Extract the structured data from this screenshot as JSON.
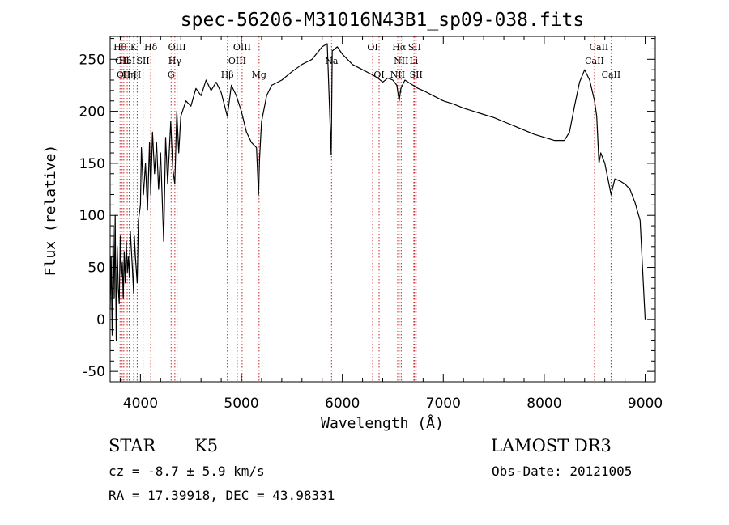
{
  "chart_data": {
    "type": "line",
    "title": "spec-56206-M31016N43B1_sp09-038.fits",
    "xlabel": "Wavelength (Å)",
    "ylabel": "Flux (relative)",
    "xlim": [
      3700,
      9100
    ],
    "ylim": [
      -60,
      272
    ],
    "xticks": [
      4000,
      5000,
      6000,
      7000,
      8000,
      9000
    ],
    "yticks": [
      -50,
      0,
      50,
      100,
      150,
      200,
      250
    ],
    "series": [
      {
        "name": "flux",
        "points": [
          [
            3700,
            10
          ],
          [
            3710,
            60
          ],
          [
            3720,
            -15
          ],
          [
            3730,
            90
          ],
          [
            3740,
            20
          ],
          [
            3750,
            100
          ],
          [
            3760,
            -20
          ],
          [
            3770,
            70
          ],
          [
            3780,
            30
          ],
          [
            3790,
            15
          ],
          [
            3800,
            80
          ],
          [
            3810,
            40
          ],
          [
            3820,
            55
          ],
          [
            3830,
            20
          ],
          [
            3840,
            65
          ],
          [
            3850,
            35
          ],
          [
            3860,
            75
          ],
          [
            3870,
            45
          ],
          [
            3880,
            60
          ],
          [
            3890,
            40
          ],
          [
            3900,
            85
          ],
          [
            3920,
            50
          ],
          [
            3933,
            25
          ],
          [
            3940,
            80
          ],
          [
            3950,
            60
          ],
          [
            3968,
            35
          ],
          [
            3980,
            95
          ],
          [
            4000,
            110
          ],
          [
            4010,
            165
          ],
          [
            4030,
            120
          ],
          [
            4050,
            150
          ],
          [
            4070,
            105
          ],
          [
            4090,
            170
          ],
          [
            4102,
            120
          ],
          [
            4120,
            180
          ],
          [
            4140,
            140
          ],
          [
            4160,
            170
          ],
          [
            4180,
            125
          ],
          [
            4200,
            160
          ],
          [
            4230,
            75
          ],
          [
            4250,
            175
          ],
          [
            4270,
            130
          ],
          [
            4300,
            190
          ],
          [
            4320,
            145
          ],
          [
            4340,
            130
          ],
          [
            4360,
            200
          ],
          [
            4380,
            160
          ],
          [
            4400,
            195
          ],
          [
            4450,
            210
          ],
          [
            4500,
            205
          ],
          [
            4550,
            222
          ],
          [
            4600,
            215
          ],
          [
            4650,
            230
          ],
          [
            4700,
            220
          ],
          [
            4750,
            228
          ],
          [
            4800,
            218
          ],
          [
            4861,
            195
          ],
          [
            4900,
            225
          ],
          [
            4950,
            215
          ],
          [
            5000,
            200
          ],
          [
            5050,
            180
          ],
          [
            5100,
            170
          ],
          [
            5150,
            165
          ],
          [
            5170,
            120
          ],
          [
            5180,
            155
          ],
          [
            5200,
            190
          ],
          [
            5250,
            215
          ],
          [
            5300,
            225
          ],
          [
            5400,
            230
          ],
          [
            5500,
            238
          ],
          [
            5600,
            245
          ],
          [
            5700,
            250
          ],
          [
            5800,
            262
          ],
          [
            5850,
            265
          ],
          [
            5890,
            158
          ],
          [
            5900,
            258
          ],
          [
            5950,
            262
          ],
          [
            6000,
            255
          ],
          [
            6050,
            250
          ],
          [
            6100,
            245
          ],
          [
            6200,
            240
          ],
          [
            6300,
            235
          ],
          [
            6350,
            232
          ],
          [
            6400,
            228
          ],
          [
            6450,
            232
          ],
          [
            6500,
            230
          ],
          [
            6540,
            225
          ],
          [
            6563,
            210
          ],
          [
            6580,
            222
          ],
          [
            6620,
            230
          ],
          [
            6700,
            225
          ],
          [
            6750,
            222
          ],
          [
            6800,
            220
          ],
          [
            6900,
            215
          ],
          [
            7000,
            210
          ],
          [
            7100,
            207
          ],
          [
            7200,
            203
          ],
          [
            7300,
            200
          ],
          [
            7400,
            197
          ],
          [
            7500,
            194
          ],
          [
            7600,
            190
          ],
          [
            7700,
            186
          ],
          [
            7800,
            182
          ],
          [
            7900,
            178
          ],
          [
            8000,
            175
          ],
          [
            8100,
            172
          ],
          [
            8200,
            172
          ],
          [
            8250,
            180
          ],
          [
            8300,
            205
          ],
          [
            8350,
            228
          ],
          [
            8400,
            240
          ],
          [
            8450,
            230
          ],
          [
            8498,
            210
          ],
          [
            8520,
            195
          ],
          [
            8542,
            150
          ],
          [
            8560,
            160
          ],
          [
            8600,
            150
          ],
          [
            8662,
            120
          ],
          [
            8700,
            135
          ],
          [
            8750,
            133
          ],
          [
            8800,
            130
          ],
          [
            8850,
            125
          ],
          [
            8900,
            112
          ],
          [
            8950,
            95
          ],
          [
            9000,
            0
          ]
        ]
      }
    ],
    "lines": [
      {
        "x": 3798,
        "labels": [
          "Hθ"
        ],
        "row": 1
      },
      {
        "x": 3819,
        "labels": [
          "OII"
        ],
        "row": 2
      },
      {
        "x": 3835,
        "labels": [
          "OII"
        ],
        "row": 3
      },
      {
        "x": 3869,
        "labels": [
          "HeI"
        ],
        "row": 2
      },
      {
        "x": 3889,
        "labels": [
          "Hη"
        ],
        "row": 3
      },
      {
        "x": 3933,
        "labels": [
          "K"
        ],
        "row": 1
      },
      {
        "x": 3968,
        "labels": [
          "H"
        ],
        "row": 3
      },
      {
        "x": 4026,
        "labels": [
          "SII"
        ],
        "row": 2
      },
      {
        "x": 4102,
        "labels": [
          "Hδ"
        ],
        "row": 1
      },
      {
        "x": 4304,
        "labels": [
          "G"
        ],
        "row": 3
      },
      {
        "x": 4341,
        "labels": [
          "Hγ"
        ],
        "row": 2
      },
      {
        "x": 4363,
        "labels": [
          "OIII"
        ],
        "row": 1
      },
      {
        "x": 4861,
        "labels": [
          "Hβ"
        ],
        "row": 3
      },
      {
        "x": 4959,
        "labels": [
          "OIII"
        ],
        "row": 2
      },
      {
        "x": 5007,
        "labels": [
          "OIII"
        ],
        "row": 1
      },
      {
        "x": 5175,
        "labels": [
          "Mg"
        ],
        "row": 3
      },
      {
        "x": 5893,
        "labels": [
          "Na"
        ],
        "row": 2
      },
      {
        "x": 6300,
        "labels": [
          "OI"
        ],
        "row": 1
      },
      {
        "x": 6364,
        "labels": [
          "OI"
        ],
        "row": 3
      },
      {
        "x": 6548,
        "labels": [
          "NII"
        ],
        "row": 3
      },
      {
        "x": 6563,
        "labels": [
          "Hα"
        ],
        "row": 1
      },
      {
        "x": 6583,
        "labels": [
          "NII"
        ],
        "row": 2
      },
      {
        "x": 6708,
        "labels": [
          "Li"
        ],
        "row": 2
      },
      {
        "x": 6716,
        "labels": [
          "SII"
        ],
        "row": 1
      },
      {
        "x": 6731,
        "labels": [
          "SII"
        ],
        "row": 3
      },
      {
        "x": 8498,
        "labels": [
          "CaII"
        ],
        "row": 2
      },
      {
        "x": 8542,
        "labels": [
          "CaII"
        ],
        "row": 1
      },
      {
        "x": 8662,
        "labels": [
          "CaII"
        ],
        "row": 3
      }
    ]
  },
  "info": {
    "class": "STAR",
    "subclass": "K5",
    "survey": "LAMOST DR3",
    "cz": "cz = -8.7 ± 5.9 km/s",
    "obs_date": "Obs-Date: 20121005",
    "coords": "RA =  17.39918, DEC =  43.98331"
  }
}
